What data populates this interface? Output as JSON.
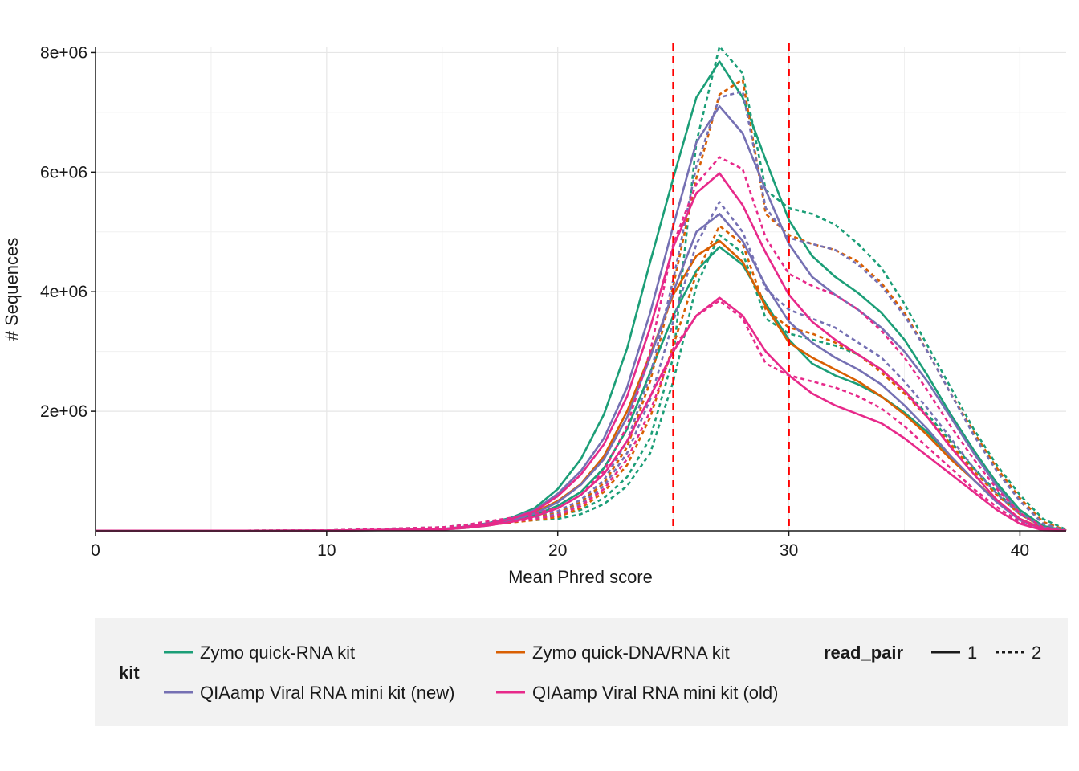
{
  "chart_data": {
    "type": "line",
    "title": "",
    "xlabel": "Mean Phred score",
    "ylabel": "# Sequences",
    "xlim": [
      0,
      42
    ],
    "ylim": [
      0,
      8100000
    ],
    "x_ticks": [
      0,
      10,
      20,
      30,
      40
    ],
    "x_tick_labels": [
      "0",
      "10",
      "20",
      "30",
      "40"
    ],
    "y_ticks": [
      2000000,
      4000000,
      6000000,
      8000000
    ],
    "y_tick_labels": [
      "2e+06",
      "4e+06",
      "6e+06",
      "8e+06"
    ],
    "grid": true,
    "legend_position": "bottom",
    "vlines": [
      {
        "x": 25,
        "color": "#ff0000",
        "style": "dashed"
      },
      {
        "x": 30,
        "color": "#ff0000",
        "style": "dashed"
      }
    ],
    "legend": {
      "kit_title": "kit",
      "kits": [
        {
          "label": "Zymo quick-RNA kit",
          "color": "#1b9e77"
        },
        {
          "label": "Zymo quick-DNA/RNA kit",
          "color": "#d95f02"
        },
        {
          "label": "QIAamp Viral RNA mini kit (new)",
          "color": "#7570b3"
        },
        {
          "label": "QIAamp Viral RNA mini kit (old)",
          "color": "#e7298a"
        }
      ],
      "read_pair_title": "read_pair",
      "read_pairs": [
        {
          "label": "1",
          "style": "solid"
        },
        {
          "label": "2",
          "style": "dotted"
        }
      ]
    },
    "x": [
      0,
      5,
      10,
      15,
      16,
      17,
      18,
      19,
      20,
      21,
      22,
      23,
      24,
      25,
      26,
      27,
      28,
      29,
      30,
      31,
      32,
      33,
      34,
      35,
      36,
      37,
      38,
      39,
      40,
      41,
      42
    ],
    "series": [
      {
        "kit": "Zymo quick-RNA kit",
        "read_pair": "1",
        "color": "#1b9e77",
        "values": [
          0,
          1000,
          4000,
          30000,
          70000,
          130000,
          220000,
          380000,
          700000,
          1200000,
          1950000,
          3050000,
          4500000,
          5900000,
          7250000,
          7850000,
          7250000,
          6200000,
          5200000,
          4600000,
          4250000,
          3980000,
          3650000,
          3200000,
          2600000,
          1950000,
          1350000,
          800000,
          350000,
          80000,
          5000
        ]
      },
      {
        "kit": "Zymo quick-RNA kit",
        "read_pair": "1",
        "color": "#1b9e77",
        "values": [
          0,
          800,
          3000,
          20000,
          50000,
          90000,
          160000,
          260000,
          420000,
          650000,
          1050000,
          1700000,
          2650000,
          3600000,
          4350000,
          4750000,
          4450000,
          3800000,
          3200000,
          2800000,
          2600000,
          2450000,
          2250000,
          1980000,
          1650000,
          1250000,
          850000,
          500000,
          200000,
          30000,
          0
        ]
      },
      {
        "kit": "Zymo quick-RNA kit",
        "read_pair": "2",
        "color": "#1b9e77",
        "values": [
          0,
          2000,
          8000,
          60000,
          100000,
          150000,
          200000,
          230000,
          250000,
          350000,
          550000,
          900000,
          1550000,
          2900000,
          6500000,
          8100000,
          7650000,
          5700000,
          5400000,
          5300000,
          5120000,
          4800000,
          4400000,
          3800000,
          3100000,
          2400000,
          1700000,
          1100000,
          600000,
          200000,
          20000
        ]
      },
      {
        "kit": "Zymo quick-RNA kit",
        "read_pair": "2",
        "color": "#1b9e77",
        "values": [
          0,
          1500,
          6000,
          40000,
          70000,
          110000,
          150000,
          180000,
          200000,
          280000,
          450000,
          750000,
          1300000,
          2500000,
          4100000,
          4950000,
          4650000,
          3550000,
          3300000,
          3200000,
          3100000,
          2950000,
          2700000,
          2350000,
          1950000,
          1500000,
          1050000,
          650000,
          300000,
          80000,
          0
        ]
      },
      {
        "kit": "Zymo quick-DNA/RNA kit",
        "read_pair": "1",
        "color": "#d95f02",
        "values": [
          0,
          900,
          3500,
          25000,
          60000,
          110000,
          190000,
          310000,
          500000,
          780000,
          1250000,
          2000000,
          2950000,
          3950000,
          4600000,
          4850000,
          4500000,
          3750000,
          3150000,
          2900000,
          2700000,
          2500000,
          2250000,
          1950000,
          1600000,
          1200000,
          850000,
          500000,
          200000,
          40000,
          0
        ]
      },
      {
        "kit": "Zymo quick-DNA/RNA kit",
        "read_pair": "2",
        "color": "#d95f02",
        "values": [
          0,
          1800,
          7000,
          50000,
          90000,
          140000,
          190000,
          240000,
          300000,
          480000,
          800000,
          1400000,
          2500000,
          4100000,
          5900000,
          7300000,
          7550000,
          5300000,
          4950000,
          4800000,
          4700000,
          4500000,
          4150000,
          3650000,
          3000000,
          2300000,
          1650000,
          1050000,
          550000,
          150000,
          10000
        ]
      },
      {
        "kit": "Zymo quick-DNA/RNA kit",
        "read_pair": "2",
        "color": "#d95f02",
        "values": [
          0,
          1200,
          5000,
          35000,
          65000,
          100000,
          140000,
          180000,
          230000,
          380000,
          650000,
          1100000,
          1900000,
          3100000,
          4300000,
          5100000,
          4800000,
          3700000,
          3400000,
          3300000,
          3150000,
          2950000,
          2650000,
          2300000,
          1900000,
          1450000,
          1000000,
          600000,
          280000,
          60000,
          0
        ]
      },
      {
        "kit": "QIAamp Viral RNA mini kit (new)",
        "read_pair": "1",
        "color": "#7570b3",
        "values": [
          0,
          1000,
          4000,
          30000,
          70000,
          125000,
          210000,
          350000,
          620000,
          1000000,
          1550000,
          2400000,
          3650000,
          5100000,
          6500000,
          7100000,
          6650000,
          5700000,
          4800000,
          4250000,
          3950000,
          3700000,
          3400000,
          3000000,
          2500000,
          1900000,
          1300000,
          750000,
          300000,
          60000,
          0
        ]
      },
      {
        "kit": "QIAamp Viral RNA mini kit (new)",
        "read_pair": "1",
        "color": "#7570b3",
        "values": [
          0,
          900,
          3500,
          25000,
          60000,
          110000,
          180000,
          290000,
          480000,
          770000,
          1200000,
          1900000,
          2900000,
          4000000,
          5000000,
          5300000,
          4850000,
          4100000,
          3500000,
          3150000,
          2900000,
          2700000,
          2450000,
          2100000,
          1700000,
          1250000,
          850000,
          480000,
          180000,
          30000,
          0
        ]
      },
      {
        "kit": "QIAamp Viral RNA mini kit (new)",
        "read_pair": "2",
        "color": "#7570b3",
        "values": [
          0,
          1800,
          7000,
          50000,
          90000,
          140000,
          200000,
          260000,
          330000,
          520000,
          850000,
          1500000,
          2600000,
          4200000,
          6100000,
          7250000,
          7350000,
          5400000,
          4900000,
          4800000,
          4700000,
          4450000,
          4100000,
          3600000,
          3000000,
          2300000,
          1600000,
          1000000,
          500000,
          120000,
          5000
        ]
      },
      {
        "kit": "QIAamp Viral RNA mini kit (new)",
        "read_pair": "2",
        "color": "#7570b3",
        "values": [
          0,
          1300,
          5500,
          38000,
          70000,
          110000,
          160000,
          210000,
          280000,
          450000,
          750000,
          1300000,
          2200000,
          3500000,
          4800000,
          5500000,
          5000000,
          4050000,
          3700000,
          3550000,
          3400000,
          3150000,
          2900000,
          2500000,
          2050000,
          1550000,
          1050000,
          620000,
          280000,
          60000,
          0
        ]
      },
      {
        "kit": "QIAamp Viral RNA mini kit (old)",
        "read_pair": "1",
        "color": "#e7298a",
        "values": [
          0,
          1000,
          4000,
          30000,
          65000,
          120000,
          200000,
          330000,
          580000,
          940000,
          1450000,
          2250000,
          3400000,
          4750000,
          5650000,
          5980000,
          5450000,
          4650000,
          3950000,
          3500000,
          3200000,
          2950000,
          2700000,
          2350000,
          1900000,
          1400000,
          950000,
          520000,
          200000,
          30000,
          0
        ]
      },
      {
        "kit": "QIAamp Viral RNA mini kit (old)",
        "read_pair": "1",
        "color": "#e7298a",
        "values": [
          0,
          800,
          3000,
          22000,
          50000,
          90000,
          150000,
          240000,
          380000,
          600000,
          950000,
          1500000,
          2250000,
          3000000,
          3600000,
          3900000,
          3600000,
          3000000,
          2600000,
          2300000,
          2100000,
          1950000,
          1800000,
          1550000,
          1250000,
          950000,
          650000,
          350000,
          120000,
          10000,
          0
        ]
      },
      {
        "kit": "QIAamp Viral RNA mini kit (old)",
        "read_pair": "2",
        "color": "#e7298a",
        "values": [
          0,
          2000,
          8000,
          60000,
          100000,
          160000,
          220000,
          290000,
          380000,
          600000,
          1000000,
          1750000,
          3000000,
          4800000,
          5800000,
          6250000,
          6050000,
          4900000,
          4300000,
          4100000,
          3950000,
          3700000,
          3350000,
          2900000,
          2350000,
          1750000,
          1200000,
          700000,
          300000,
          60000,
          0
        ]
      },
      {
        "kit": "QIAamp Viral RNA mini kit (old)",
        "read_pair": "2",
        "color": "#e7298a",
        "values": [
          0,
          1400,
          5500,
          40000,
          70000,
          110000,
          150000,
          200000,
          260000,
          420000,
          700000,
          1200000,
          2000000,
          3050000,
          3600000,
          3850000,
          3550000,
          2800000,
          2600000,
          2500000,
          2400000,
          2250000,
          2050000,
          1750000,
          1400000,
          1050000,
          700000,
          400000,
          150000,
          20000,
          0
        ]
      }
    ]
  }
}
